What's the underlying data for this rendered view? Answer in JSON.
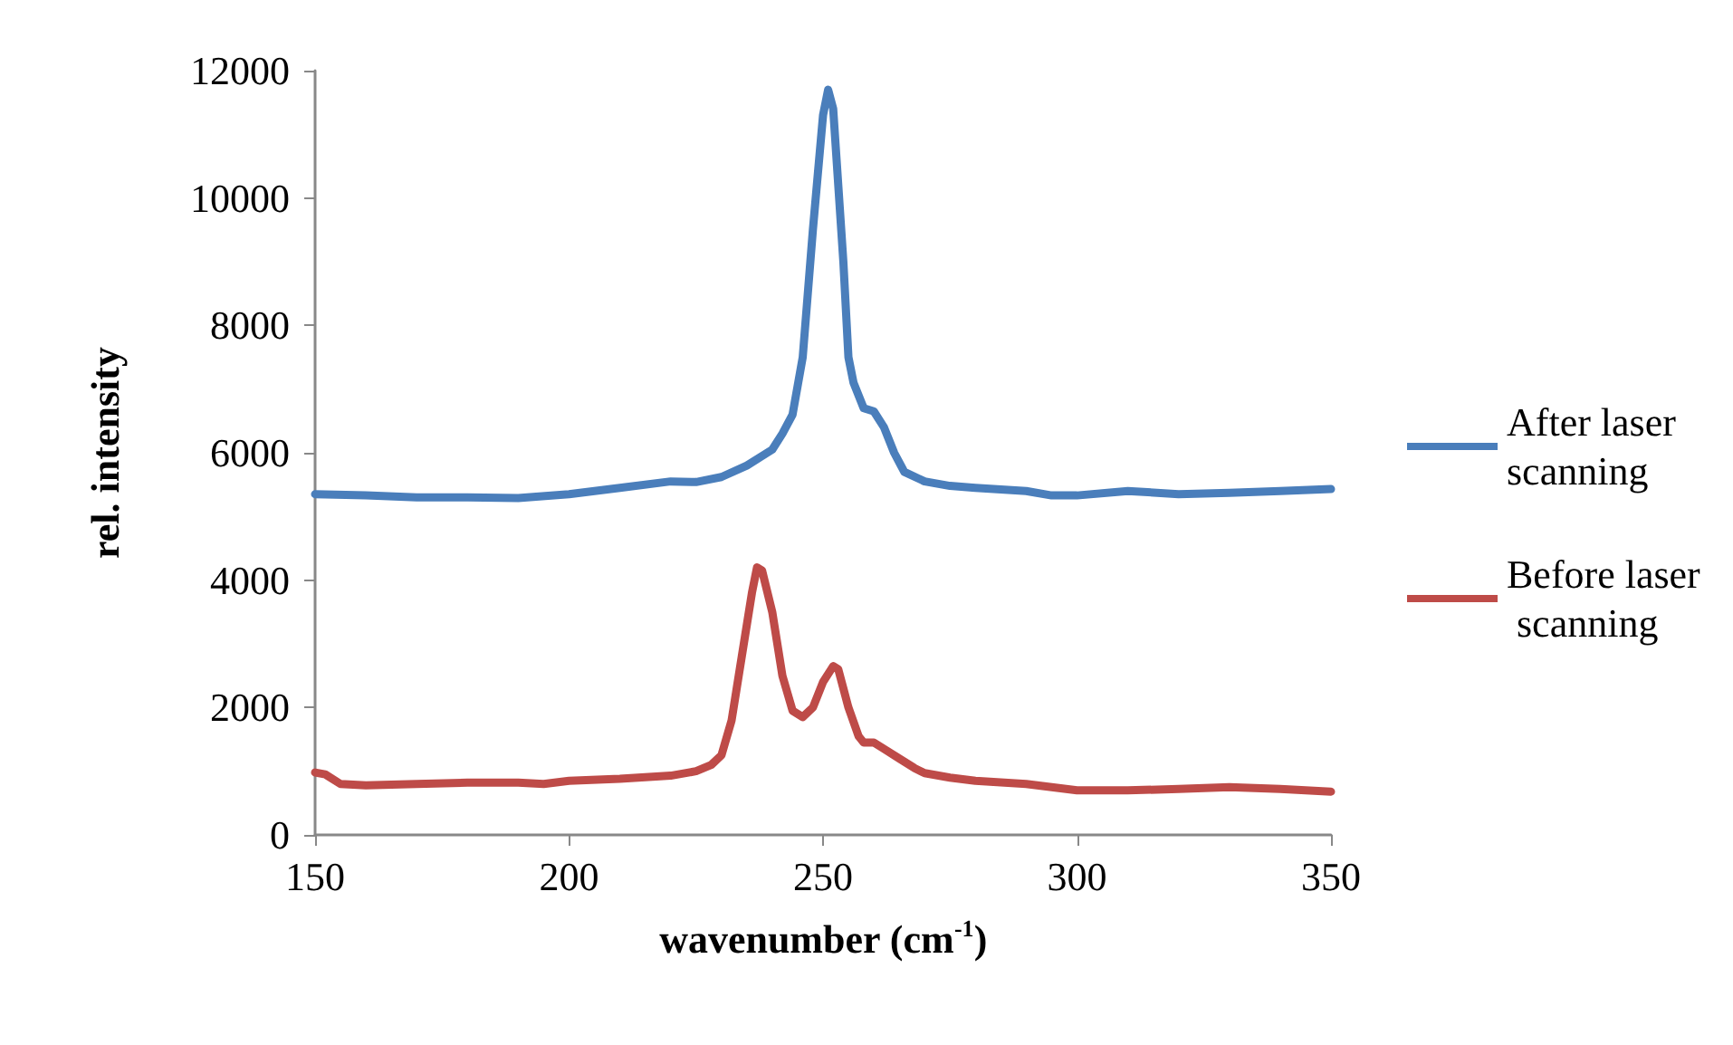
{
  "chart_data": {
    "type": "line",
    "xlabel": "wavenumber (cm$^{-1}$)",
    "ylabel": "rel. intensity",
    "xlim": [
      150,
      350
    ],
    "xticks": [
      150,
      200,
      250,
      300,
      350
    ],
    "ylim": [
      0,
      12000
    ],
    "yticks": [
      0,
      2000,
      4000,
      6000,
      8000,
      10000,
      12000
    ],
    "grid": false,
    "legend": "right",
    "marker": "none",
    "line_style": "solid",
    "series": [
      {
        "name": "After laser scanning",
        "color": "#4a7ebb",
        "x": [
          150,
          160,
          170,
          180,
          190,
          200,
          210,
          220,
          225,
          230,
          235,
          240,
          242,
          244,
          246,
          248,
          250,
          251,
          252,
          254,
          255,
          256,
          258,
          260,
          262,
          264,
          266,
          270,
          275,
          280,
          290,
          295,
          300,
          310,
          320,
          330,
          340,
          350
        ],
        "values": [
          5350,
          5330,
          5300,
          5300,
          5290,
          5350,
          5450,
          5550,
          5540,
          5620,
          5800,
          6050,
          6300,
          6600,
          7500,
          9500,
          11300,
          11700,
          11400,
          9000,
          7500,
          7100,
          6700,
          6650,
          6400,
          6000,
          5700,
          5550,
          5480,
          5450,
          5400,
          5330,
          5330,
          5400,
          5350,
          5370,
          5400,
          5430
        ]
      },
      {
        "name": "Before laser scanning",
        "color": "#be4b48",
        "x": [
          150,
          152,
          155,
          160,
          170,
          180,
          190,
          195,
          200,
          210,
          220,
          225,
          228,
          230,
          232,
          234,
          236,
          237,
          238,
          240,
          242,
          244,
          246,
          248,
          250,
          252,
          253,
          255,
          257,
          258,
          260,
          262,
          265,
          268,
          270,
          275,
          280,
          290,
          300,
          310,
          320,
          330,
          340,
          350
        ],
        "values": [
          980,
          950,
          800,
          780,
          800,
          820,
          820,
          800,
          850,
          880,
          930,
          1000,
          1100,
          1250,
          1800,
          2800,
          3800,
          4200,
          4150,
          3500,
          2500,
          1950,
          1850,
          2000,
          2400,
          2650,
          2600,
          2000,
          1550,
          1450,
          1450,
          1350,
          1200,
          1050,
          970,
          900,
          850,
          800,
          700,
          700,
          720,
          750,
          720,
          680
        ]
      }
    ]
  }
}
